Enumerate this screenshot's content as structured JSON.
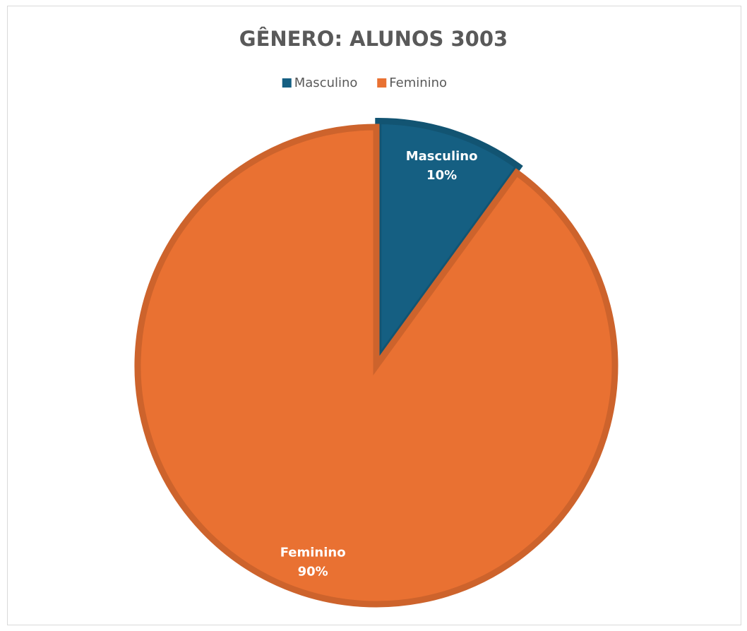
{
  "chart_data": {
    "type": "pie",
    "title": "GÊNERO: ALUNOS 3003",
    "categories": [
      "Masculino",
      "Feminino"
    ],
    "values": [
      10,
      90
    ],
    "value_labels": [
      "10%",
      "90%"
    ],
    "colors": [
      "#155f82",
      "#e97132"
    ],
    "explode": [
      true,
      false
    ],
    "legend": "top"
  }
}
